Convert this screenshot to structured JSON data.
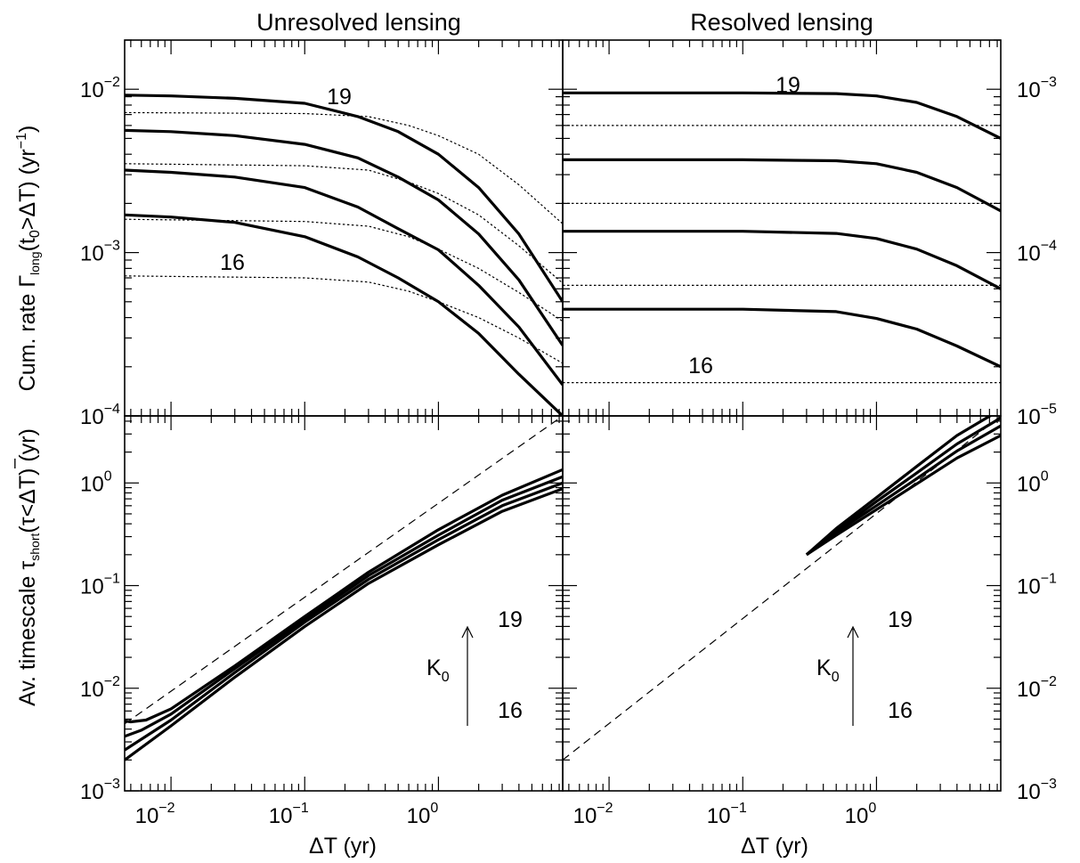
{
  "titles": {
    "left": "Unresolved lensing",
    "right": "Resolved lensing"
  },
  "axis_labels": {
    "top_y_main": "Cum. rate Γ",
    "top_y_sub1": "long",
    "top_y_mid": "(t",
    "top_y_sub2": "0",
    "top_y_rest": ">ΔT) (yr",
    "top_y_sup": "−1",
    "top_y_end": ")",
    "bottom_y_main": "Av. timescale τ",
    "bottom_y_sub": "short",
    "bottom_y_rest": "(τ<ΔT) (yr)",
    "x_left": "ΔT (yr)",
    "x_right": "ΔT (yr)"
  },
  "tick_labels": {
    "x": [
      {
        "base": "10",
        "exp": "−2"
      },
      {
        "base": "10",
        "exp": "−1"
      },
      {
        "base": "10",
        "exp": "0"
      }
    ],
    "top_left_y": [
      {
        "base": "10",
        "exp": "−4"
      },
      {
        "base": "10",
        "exp": "−3"
      },
      {
        "base": "10",
        "exp": "−2"
      }
    ],
    "top_right_y": [
      {
        "base": "10",
        "exp": "−5"
      },
      {
        "base": "10",
        "exp": "−4"
      },
      {
        "base": "10",
        "exp": "−3"
      }
    ],
    "bottom_y": [
      {
        "base": "10",
        "exp": "−3"
      },
      {
        "base": "10",
        "exp": "−2"
      },
      {
        "base": "10",
        "exp": "−1"
      },
      {
        "base": "10",
        "exp": "0"
      }
    ]
  },
  "curve_labels": {
    "tl_high": "19",
    "tl_low": "16",
    "tr_high": "19",
    "tr_low": "16",
    "bl_high": "19",
    "bl_low": "16",
    "bl_k0": "K",
    "bl_k0_sub": "0",
    "br_high": "19",
    "br_low": "16",
    "br_k0": "K",
    "br_k0_sub": "0"
  },
  "chart_data": [
    {
      "panel": "top-left",
      "type": "line",
      "title": "Unresolved lensing",
      "xlabel": "",
      "ylabel": "Cum. rate Γlong(t0>ΔT) (yr−1)",
      "x_scale": "log",
      "y_scale": "log",
      "xlim": [
        0.0045,
        8.5
      ],
      "ylim": [
        0.0001,
        0.02
      ],
      "series": [
        {
          "style": "solid",
          "points": [
            [
              0.0045,
              0.0092
            ],
            [
              0.01,
              0.0091
            ],
            [
              0.03,
              0.0088
            ],
            [
              0.1,
              0.0082
            ],
            [
              0.25,
              0.0068
            ],
            [
              0.5,
              0.0055
            ],
            [
              1,
              0.004
            ],
            [
              2,
              0.0025
            ],
            [
              4,
              0.0013
            ],
            [
              8.5,
              0.0005
            ]
          ]
        },
        {
          "style": "solid",
          "points": [
            [
              0.0045,
              0.0056
            ],
            [
              0.01,
              0.0055
            ],
            [
              0.03,
              0.0052
            ],
            [
              0.1,
              0.0046
            ],
            [
              0.25,
              0.0038
            ],
            [
              0.5,
              0.0029
            ],
            [
              1,
              0.0021
            ],
            [
              2,
              0.0013
            ],
            [
              4,
              0.00068
            ],
            [
              8.5,
              0.00027
            ]
          ]
        },
        {
          "style": "solid",
          "points": [
            [
              0.0045,
              0.0032
            ],
            [
              0.01,
              0.0031
            ],
            [
              0.03,
              0.0029
            ],
            [
              0.1,
              0.0025
            ],
            [
              0.25,
              0.0019
            ],
            [
              0.5,
              0.0014
            ],
            [
              1,
              0.00104
            ],
            [
              2,
              0.00063
            ],
            [
              4,
              0.00035
            ],
            [
              8.5,
              0.000155
            ]
          ]
        },
        {
          "style": "solid",
          "points": [
            [
              0.0045,
              0.0017
            ],
            [
              0.01,
              0.00165
            ],
            [
              0.03,
              0.00153
            ],
            [
              0.1,
              0.00125
            ],
            [
              0.25,
              0.00094
            ],
            [
              0.5,
              0.0007
            ],
            [
              1,
              0.0005
            ],
            [
              2,
              0.00032
            ],
            [
              4,
              0.00018
            ],
            [
              8.5,
              0.0001
            ]
          ]
        },
        {
          "style": "dotted",
          "points": [
            [
              0.0045,
              0.0072
            ],
            [
              0.1,
              0.0071
            ],
            [
              0.3,
              0.0068
            ],
            [
              0.6,
              0.006
            ],
            [
              1,
              0.0052
            ],
            [
              2,
              0.004
            ],
            [
              4,
              0.0026
            ],
            [
              8.5,
              0.0015
            ]
          ]
        },
        {
          "style": "dotted",
          "points": [
            [
              0.0045,
              0.0035
            ],
            [
              0.1,
              0.0034
            ],
            [
              0.3,
              0.0032
            ],
            [
              0.6,
              0.0027
            ],
            [
              1,
              0.0023
            ],
            [
              2,
              0.0017
            ],
            [
              4,
              0.0011
            ],
            [
              8.5,
              0.00065
            ]
          ]
        },
        {
          "style": "dotted",
          "points": [
            [
              0.0045,
              0.0016
            ],
            [
              0.1,
              0.00155
            ],
            [
              0.3,
              0.00145
            ],
            [
              0.6,
              0.00125
            ],
            [
              1,
              0.00105
            ],
            [
              2,
              0.0008
            ],
            [
              4,
              0.00057
            ],
            [
              8.5,
              0.00038
            ]
          ]
        },
        {
          "style": "dotted",
          "points": [
            [
              0.0045,
              0.00072
            ],
            [
              0.1,
              0.0007
            ],
            [
              0.3,
              0.00066
            ],
            [
              0.6,
              0.00058
            ],
            [
              1,
              0.0005
            ],
            [
              2,
              0.0004
            ],
            [
              4,
              0.0003
            ],
            [
              8.5,
              0.00021
            ]
          ]
        }
      ]
    },
    {
      "panel": "top-right",
      "type": "line",
      "title": "Resolved lensing",
      "xlabel": "",
      "ylabel": "",
      "x_scale": "log",
      "y_scale": "log",
      "xlim": [
        0.0045,
        8.5
      ],
      "ylim": [
        1e-05,
        0.002
      ],
      "series": [
        {
          "style": "solid",
          "points": [
            [
              0.0045,
              0.00095
            ],
            [
              0.1,
              0.00095
            ],
            [
              0.5,
              0.00094
            ],
            [
              1,
              0.00091
            ],
            [
              2,
              0.00083
            ],
            [
              4,
              0.00068
            ],
            [
              8.5,
              0.0005
            ]
          ]
        },
        {
          "style": "solid",
          "points": [
            [
              0.0045,
              0.00037
            ],
            [
              0.1,
              0.00037
            ],
            [
              0.5,
              0.000365
            ],
            [
              1,
              0.00035
            ],
            [
              2,
              0.00031
            ],
            [
              4,
              0.00025
            ],
            [
              8.5,
              0.00018
            ]
          ]
        },
        {
          "style": "solid",
          "points": [
            [
              0.0045,
              0.000135
            ],
            [
              0.1,
              0.000135
            ],
            [
              0.5,
              0.000131
            ],
            [
              1,
              0.000122
            ],
            [
              2,
              0.000105
            ],
            [
              4,
              8.3e-05
            ],
            [
              8.5,
              6e-05
            ]
          ]
        },
        {
          "style": "solid",
          "points": [
            [
              0.0045,
              4.5e-05
            ],
            [
              0.1,
              4.5e-05
            ],
            [
              0.5,
              4.35e-05
            ],
            [
              1,
              3.95e-05
            ],
            [
              2,
              3.4e-05
            ],
            [
              4,
              2.68e-05
            ],
            [
              8.5,
              2e-05
            ]
          ]
        },
        {
          "style": "dotted",
          "points": [
            [
              0.0045,
              0.0006
            ],
            [
              8.5,
              0.0006
            ]
          ]
        },
        {
          "style": "dotted",
          "points": [
            [
              0.0045,
              0.0002
            ],
            [
              8.5,
              0.0002
            ]
          ]
        },
        {
          "style": "dotted",
          "points": [
            [
              0.0045,
              6.3e-05
            ],
            [
              8.5,
              6.3e-05
            ]
          ]
        },
        {
          "style": "dotted",
          "points": [
            [
              0.0045,
              1.6e-05
            ],
            [
              8.5,
              1.6e-05
            ]
          ]
        }
      ]
    },
    {
      "panel": "bottom-left",
      "type": "line",
      "title": "",
      "xlabel": "ΔT (yr)",
      "ylabel": "Av. timescale τshort(τ<ΔT) (yr)",
      "x_scale": "log",
      "y_scale": "log",
      "xlim": [
        0.0045,
        8.5
      ],
      "ylim": [
        0.001,
        4.5
      ],
      "series": [
        {
          "style": "solid",
          "points": [
            [
              0.0045,
              0.0048
            ],
            [
              0.005,
              0.0047
            ],
            [
              0.0065,
              0.0049
            ],
            [
              0.01,
              0.0063
            ],
            [
              0.03,
              0.0165
            ],
            [
              0.1,
              0.05
            ],
            [
              0.3,
              0.135
            ],
            [
              1,
              0.35
            ],
            [
              3,
              0.76
            ],
            [
              8.5,
              1.35
            ]
          ]
        },
        {
          "style": "solid",
          "points": [
            [
              0.0045,
              0.0034
            ],
            [
              0.006,
              0.0039
            ],
            [
              0.01,
              0.0056
            ],
            [
              0.03,
              0.0155
            ],
            [
              0.1,
              0.047
            ],
            [
              0.3,
              0.125
            ],
            [
              1,
              0.31
            ],
            [
              3,
              0.68
            ],
            [
              8.5,
              1.15
            ]
          ]
        },
        {
          "style": "solid",
          "points": [
            [
              0.0045,
              0.0025
            ],
            [
              0.01,
              0.0049
            ],
            [
              0.03,
              0.0142
            ],
            [
              0.1,
              0.044
            ],
            [
              0.3,
              0.115
            ],
            [
              1,
              0.28
            ],
            [
              3,
              0.6
            ],
            [
              8.5,
              1.0
            ]
          ]
        },
        {
          "style": "solid",
          "points": [
            [
              0.0045,
              0.002
            ],
            [
              0.01,
              0.0043
            ],
            [
              0.03,
              0.0128
            ],
            [
              0.1,
              0.04
            ],
            [
              0.3,
              0.105
            ],
            [
              1,
              0.25
            ],
            [
              3,
              0.53
            ],
            [
              8.5,
              0.88
            ]
          ]
        },
        {
          "style": "dashed",
          "points": [
            [
              0.0045,
              0.0045
            ],
            [
              8.5,
              4.5
            ]
          ]
        }
      ]
    },
    {
      "panel": "bottom-right",
      "type": "line",
      "title": "",
      "xlabel": "ΔT (yr)",
      "ylabel": "",
      "x_scale": "log",
      "y_scale": "log",
      "xlim": [
        0.0045,
        8.5
      ],
      "ylim": [
        0.001,
        4.5
      ],
      "series": [
        {
          "style": "solid",
          "points": [
            [
              0.3,
              0.2
            ],
            [
              0.5,
              0.36
            ],
            [
              1,
              0.72
            ],
            [
              2,
              1.45
            ],
            [
              4,
              2.9
            ],
            [
              8.5,
              5.2
            ]
          ]
        },
        {
          "style": "solid",
          "points": [
            [
              0.3,
              0.2
            ],
            [
              0.5,
              0.34
            ],
            [
              1,
              0.66
            ],
            [
              2,
              1.25
            ],
            [
              4,
              2.4
            ],
            [
              8.5,
              4.3
            ]
          ]
        },
        {
          "style": "solid",
          "points": [
            [
              0.3,
              0.2
            ],
            [
              0.5,
              0.33
            ],
            [
              1,
              0.6
            ],
            [
              2,
              1.1
            ],
            [
              4,
              2.05
            ],
            [
              8.5,
              3.6
            ]
          ]
        },
        {
          "style": "solid",
          "points": [
            [
              0.3,
              0.2
            ],
            [
              0.5,
              0.31
            ],
            [
              1,
              0.55
            ],
            [
              2,
              0.98
            ],
            [
              4,
              1.75
            ],
            [
              8.5,
              2.9
            ]
          ]
        },
        {
          "style": "dashed",
          "points": [
            [
              0.0045,
              0.002
            ],
            [
              8.5,
              4.5
            ]
          ]
        }
      ]
    }
  ]
}
